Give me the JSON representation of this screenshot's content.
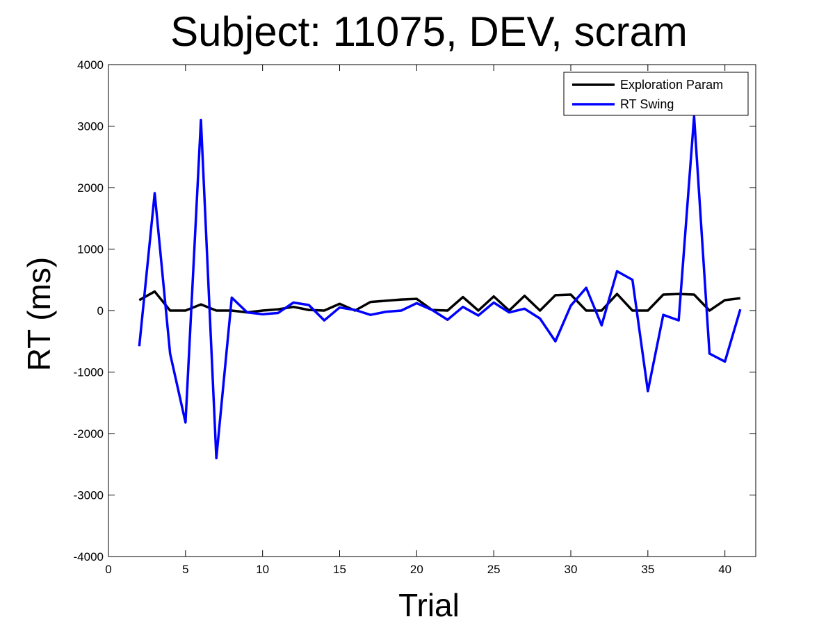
{
  "chart_data": {
    "type": "line",
    "title": "Subject: 11075, DEV, scram",
    "xlabel": "Trial",
    "ylabel": "RT (ms)",
    "xlim": [
      0,
      42
    ],
    "ylim": [
      -4000,
      4000
    ],
    "xticks": [
      0,
      5,
      10,
      15,
      20,
      25,
      30,
      35,
      40
    ],
    "yticks": [
      -4000,
      -3000,
      -2000,
      -1000,
      0,
      1000,
      2000,
      3000,
      4000
    ],
    "grid": false,
    "legend_position": "top-right",
    "x": [
      2,
      3,
      4,
      5,
      6,
      7,
      8,
      9,
      10,
      11,
      12,
      13,
      14,
      15,
      16,
      17,
      18,
      19,
      20,
      21,
      22,
      23,
      24,
      25,
      26,
      27,
      28,
      29,
      30,
      31,
      32,
      33,
      34,
      35,
      36,
      37,
      38,
      39,
      40,
      41
    ],
    "series": [
      {
        "name": "Exploration Param",
        "color": "#000000",
        "values": [
          170,
          310,
          0,
          0,
          100,
          0,
          0,
          -30,
          0,
          20,
          60,
          10,
          0,
          110,
          0,
          140,
          160,
          180,
          190,
          10,
          0,
          220,
          0,
          230,
          0,
          240,
          0,
          250,
          260,
          0,
          0,
          270,
          0,
          0,
          260,
          270,
          260,
          0,
          170,
          200
        ]
      },
      {
        "name": "RT Swing",
        "color": "#0000ff",
        "values": [
          -580,
          1910,
          -700,
          -1820,
          3100,
          -2400,
          210,
          -30,
          -60,
          -40,
          130,
          90,
          -160,
          50,
          10,
          -70,
          -20,
          0,
          120,
          10,
          -150,
          60,
          -80,
          130,
          -30,
          30,
          -130,
          -500,
          80,
          370,
          -240,
          640,
          500,
          -1310,
          -70,
          -160,
          3160,
          -700,
          -830,
          20
        ]
      }
    ]
  }
}
